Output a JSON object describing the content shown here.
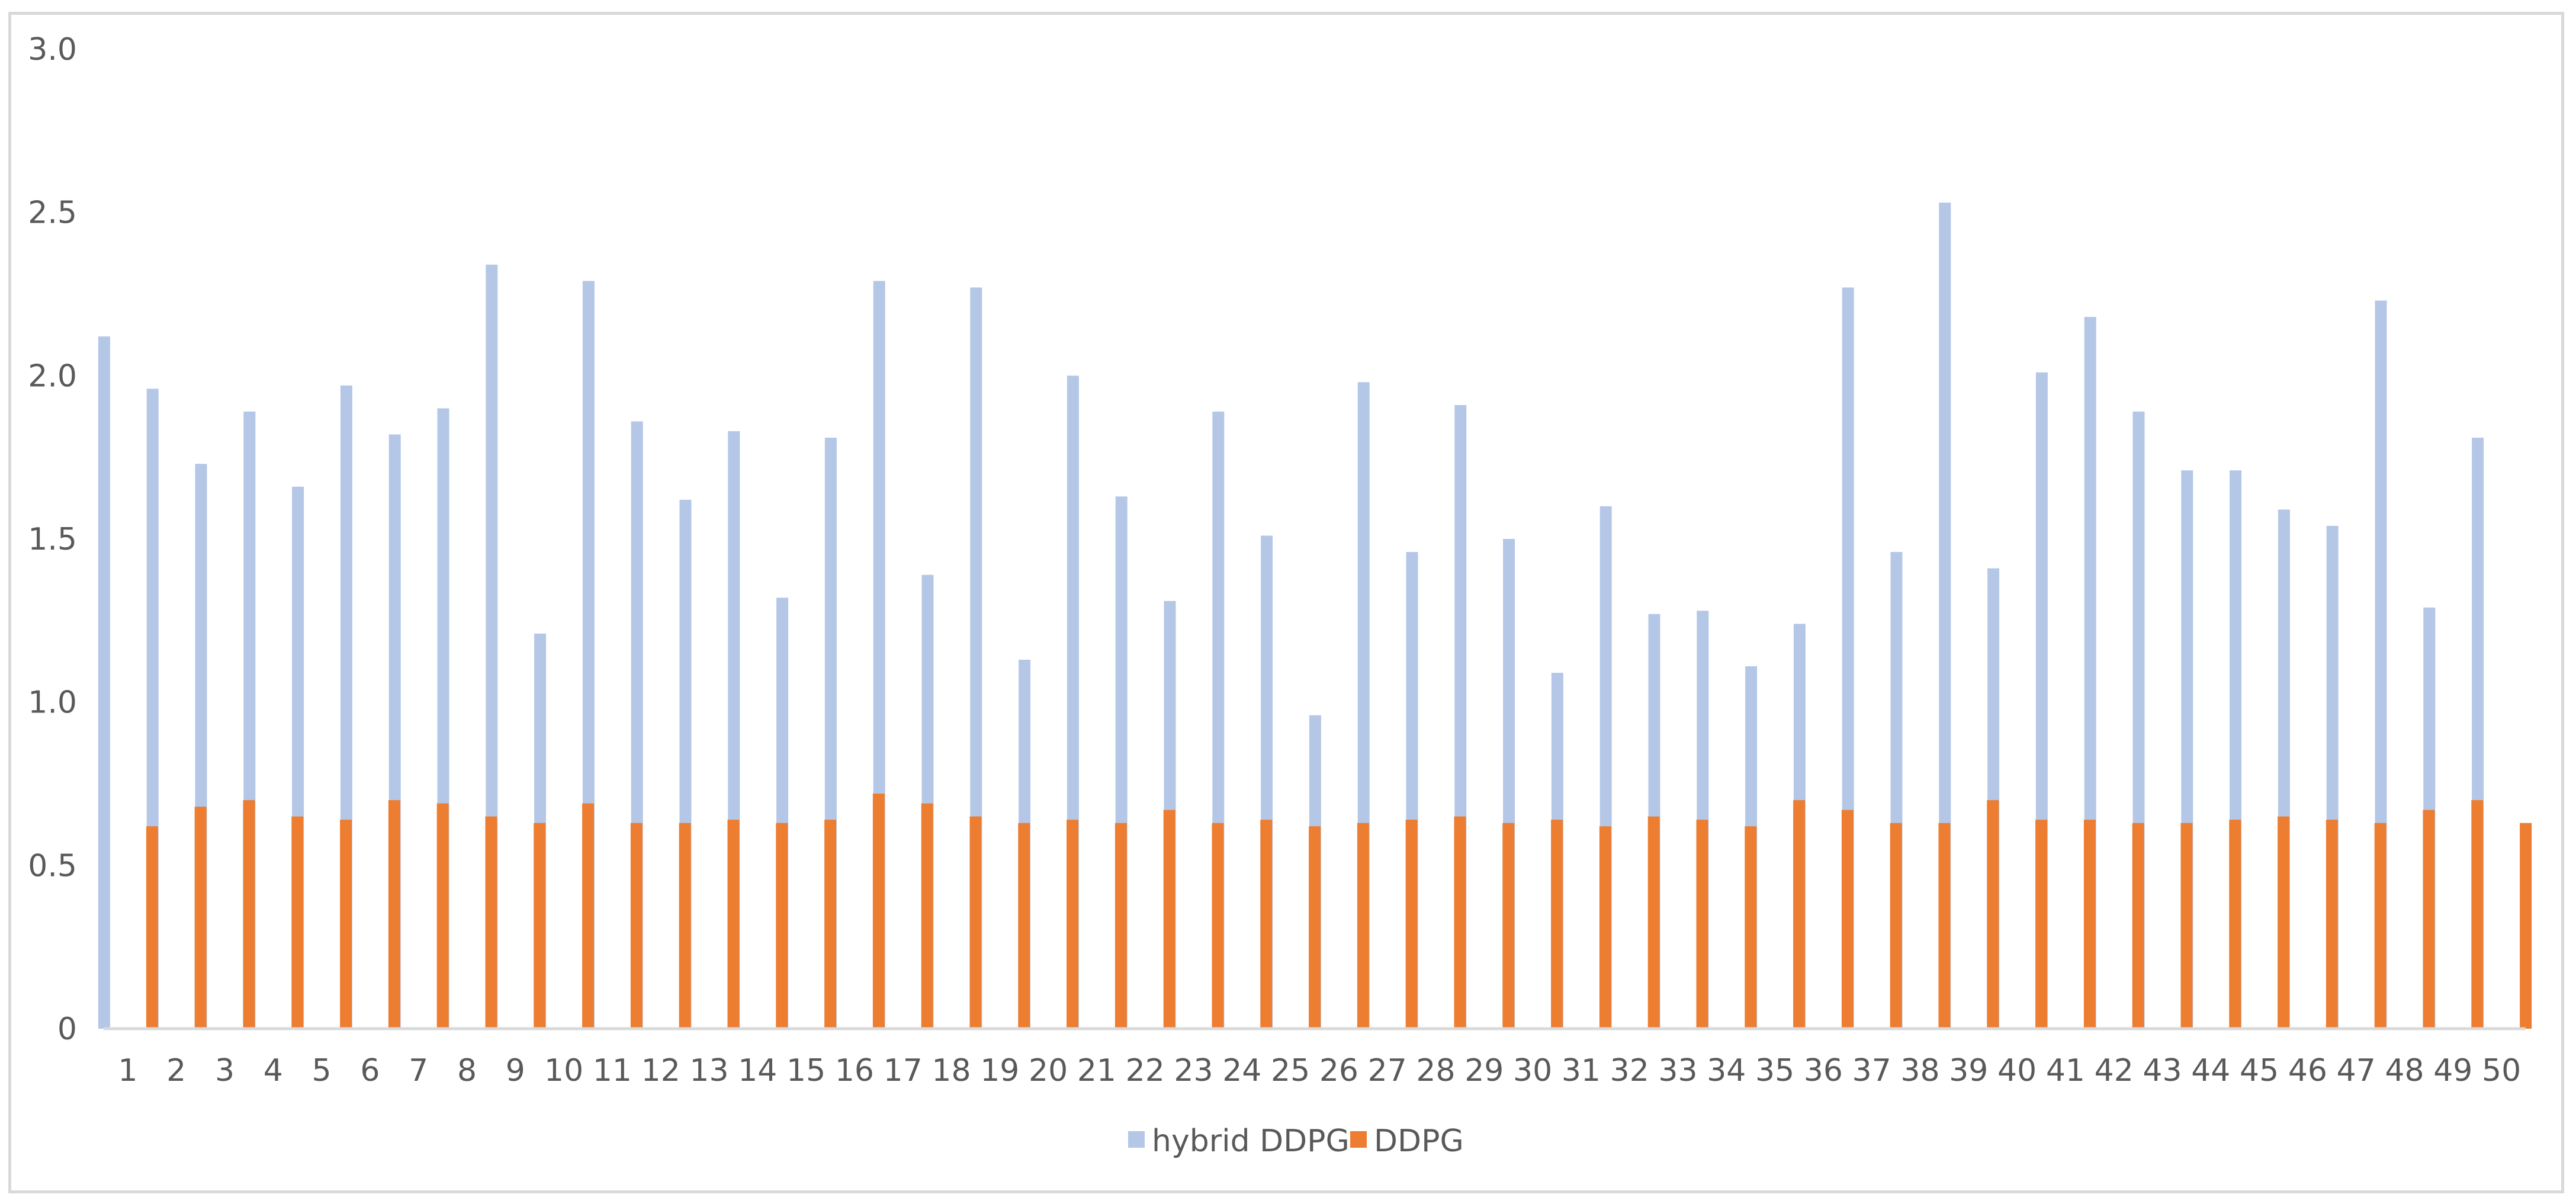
{
  "chart_data": {
    "type": "bar",
    "title": "",
    "xlabel": "",
    "ylabel": "",
    "ylim": [
      0,
      3.0
    ],
    "y_ticks": [
      "0",
      "0.5",
      "1.0",
      "1.5",
      "2.0",
      "2.5",
      "3.0"
    ],
    "categories": [
      "1",
      "2",
      "3",
      "4",
      "5",
      "6",
      "7",
      "8",
      "9",
      "10",
      "11",
      "12",
      "13",
      "14",
      "15",
      "16",
      "17",
      "18",
      "19",
      "20",
      "21",
      "22",
      "23",
      "24",
      "25",
      "26",
      "27",
      "28",
      "29",
      "30",
      "31",
      "32",
      "33",
      "34",
      "35",
      "36",
      "37",
      "38",
      "39",
      "40",
      "41",
      "42",
      "43",
      "44",
      "45",
      "46",
      "47",
      "48",
      "49",
      "50"
    ],
    "series": [
      {
        "name": "hybrid DDPG",
        "color": "#b4c7e7",
        "values": [
          2.12,
          1.96,
          1.73,
          1.89,
          1.66,
          1.97,
          1.82,
          1.9,
          2.34,
          1.21,
          2.29,
          1.86,
          1.62,
          1.83,
          1.32,
          1.81,
          2.29,
          1.39,
          2.27,
          1.13,
          2.0,
          1.63,
          1.31,
          1.89,
          1.51,
          0.96,
          1.98,
          1.46,
          1.91,
          1.5,
          1.09,
          1.6,
          1.27,
          1.28,
          1.11,
          1.24,
          2.27,
          1.46,
          2.53,
          1.41,
          2.01,
          2.18,
          1.89,
          1.71,
          1.71,
          1.59,
          1.54,
          2.23,
          1.29,
          1.81
        ]
      },
      {
        "name": "DDPG",
        "color": "#ed7d31",
        "values": [
          0.62,
          0.68,
          0.7,
          0.65,
          0.64,
          0.7,
          0.69,
          0.65,
          0.63,
          0.69,
          0.63,
          0.63,
          0.64,
          0.63,
          0.64,
          0.72,
          0.69,
          0.65,
          0.63,
          0.64,
          0.63,
          0.67,
          0.63,
          0.64,
          0.62,
          0.63,
          0.64,
          0.65,
          0.63,
          0.64,
          0.62,
          0.65,
          0.64,
          0.62,
          0.7,
          0.67,
          0.63,
          0.63,
          0.7,
          0.64,
          0.64,
          0.63,
          0.63,
          0.64,
          0.65,
          0.64,
          0.63,
          0.67,
          0.7,
          0.63
        ]
      }
    ],
    "grid": false,
    "legend_position": "bottom"
  }
}
